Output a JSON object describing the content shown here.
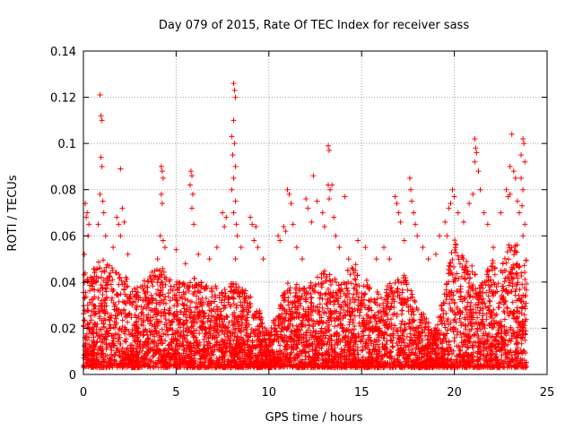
{
  "chart_data": {
    "type": "scatter",
    "title": "Day 079 of 2015, Rate Of TEC Index for receiver sass",
    "xlabel": "GPS time / hours",
    "ylabel": "ROTI / TECUs",
    "xlim": [
      0,
      25
    ],
    "ylim": [
      0,
      0.14
    ],
    "x_ticks": [
      "0",
      "5",
      "10",
      "15",
      "20",
      "25"
    ],
    "y_ticks": [
      "0",
      "0.02",
      "0.04",
      "0.06",
      "0.08",
      "0.1",
      "0.12",
      "0.14"
    ],
    "x_tick_values": [
      0,
      5,
      10,
      15,
      20,
      25
    ],
    "y_tick_values": [
      0,
      0.02,
      0.04,
      0.06,
      0.07999999999999999,
      0.1,
      0.12,
      0.14
    ],
    "grid": true,
    "marker": "+",
    "color": "#ff0000",
    "series": [
      {
        "name": "ROTI",
        "points": [
          [
            0.1,
            0.074
          ],
          [
            0.15,
            0.068
          ],
          [
            0.2,
            0.07
          ],
          [
            0.3,
            0.065
          ],
          [
            0.25,
            0.06
          ],
          [
            0.05,
            0.052
          ],
          [
            0.9,
            0.121
          ],
          [
            0.95,
            0.112
          ],
          [
            1.0,
            0.11
          ],
          [
            0.95,
            0.094
          ],
          [
            1.0,
            0.09
          ],
          [
            0.9,
            0.078
          ],
          [
            1.05,
            0.075
          ],
          [
            1.1,
            0.07
          ],
          [
            0.8,
            0.065
          ],
          [
            1.2,
            0.06
          ],
          [
            1.6,
            0.055
          ],
          [
            1.8,
            0.068
          ],
          [
            1.9,
            0.065
          ],
          [
            2.0,
            0.089
          ],
          [
            2.1,
            0.072
          ],
          [
            2.2,
            0.066
          ],
          [
            2.0,
            0.06
          ],
          [
            2.4,
            0.052
          ],
          [
            4.2,
            0.09
          ],
          [
            4.25,
            0.088
          ],
          [
            4.3,
            0.085
          ],
          [
            4.2,
            0.078
          ],
          [
            4.25,
            0.074
          ],
          [
            4.15,
            0.06
          ],
          [
            4.3,
            0.058
          ],
          [
            4.4,
            0.055
          ],
          [
            4.0,
            0.05
          ],
          [
            5.0,
            0.054
          ],
          [
            5.5,
            0.048
          ],
          [
            5.8,
            0.088
          ],
          [
            5.85,
            0.086
          ],
          [
            5.75,
            0.082
          ],
          [
            5.9,
            0.078
          ],
          [
            5.85,
            0.072
          ],
          [
            5.95,
            0.065
          ],
          [
            6.2,
            0.052
          ],
          [
            6.8,
            0.05
          ],
          [
            7.2,
            0.055
          ],
          [
            7.5,
            0.07
          ],
          [
            7.7,
            0.068
          ],
          [
            7.6,
            0.064
          ],
          [
            8.1,
            0.126
          ],
          [
            8.15,
            0.123
          ],
          [
            8.2,
            0.12
          ],
          [
            8.1,
            0.11
          ],
          [
            8.0,
            0.103
          ],
          [
            8.15,
            0.1
          ],
          [
            8.05,
            0.095
          ],
          [
            8.2,
            0.09
          ],
          [
            8.1,
            0.085
          ],
          [
            8.0,
            0.08
          ],
          [
            8.2,
            0.075
          ],
          [
            8.1,
            0.07
          ],
          [
            8.25,
            0.065
          ],
          [
            8.3,
            0.06
          ],
          [
            8.5,
            0.055
          ],
          [
            8.2,
            0.05
          ],
          [
            9.0,
            0.068
          ],
          [
            9.1,
            0.065
          ],
          [
            9.3,
            0.064
          ],
          [
            9.2,
            0.058
          ],
          [
            9.4,
            0.055
          ],
          [
            9.7,
            0.05
          ],
          [
            10.5,
            0.06
          ],
          [
            10.6,
            0.058
          ],
          [
            10.8,
            0.064
          ],
          [
            10.9,
            0.062
          ],
          [
            11.0,
            0.08
          ],
          [
            11.1,
            0.078
          ],
          [
            11.2,
            0.074
          ],
          [
            11.3,
            0.065
          ],
          [
            11.5,
            0.055
          ],
          [
            11.8,
            0.05
          ],
          [
            12.0,
            0.076
          ],
          [
            12.1,
            0.072
          ],
          [
            12.3,
            0.066
          ],
          [
            12.4,
            0.086
          ],
          [
            12.6,
            0.075
          ],
          [
            12.9,
            0.07
          ],
          [
            13.0,
            0.064
          ],
          [
            13.2,
            0.099
          ],
          [
            13.25,
            0.097
          ],
          [
            13.2,
            0.082
          ],
          [
            13.3,
            0.08
          ],
          [
            13.25,
            0.076
          ],
          [
            13.4,
            0.082
          ],
          [
            13.5,
            0.068
          ],
          [
            13.6,
            0.06
          ],
          [
            13.8,
            0.055
          ],
          [
            14.1,
            0.077
          ],
          [
            14.3,
            0.05
          ],
          [
            14.8,
            0.058
          ],
          [
            15.2,
            0.055
          ],
          [
            15.8,
            0.05
          ],
          [
            16.2,
            0.055
          ],
          [
            16.5,
            0.05
          ],
          [
            16.8,
            0.077
          ],
          [
            16.9,
            0.074
          ],
          [
            17.0,
            0.07
          ],
          [
            17.1,
            0.066
          ],
          [
            17.3,
            0.058
          ],
          [
            17.6,
            0.085
          ],
          [
            17.65,
            0.08
          ],
          [
            17.7,
            0.075
          ],
          [
            17.8,
            0.07
          ],
          [
            17.9,
            0.065
          ],
          [
            18.0,
            0.06
          ],
          [
            18.3,
            0.055
          ],
          [
            18.6,
            0.05
          ],
          [
            19.0,
            0.052
          ],
          [
            19.2,
            0.06
          ],
          [
            19.5,
            0.066
          ],
          [
            19.6,
            0.06
          ],
          [
            19.7,
            0.072
          ],
          [
            19.8,
            0.074
          ],
          [
            19.9,
            0.08
          ],
          [
            20.0,
            0.077
          ],
          [
            20.2,
            0.07
          ],
          [
            20.5,
            0.066
          ],
          [
            20.8,
            0.074
          ],
          [
            21.0,
            0.078
          ],
          [
            21.1,
            0.102
          ],
          [
            21.15,
            0.098
          ],
          [
            21.2,
            0.096
          ],
          [
            21.1,
            0.092
          ],
          [
            21.3,
            0.088
          ],
          [
            21.4,
            0.08
          ],
          [
            21.6,
            0.07
          ],
          [
            21.8,
            0.065
          ],
          [
            22.1,
            0.055
          ],
          [
            22.5,
            0.07
          ],
          [
            22.8,
            0.08
          ],
          [
            22.9,
            0.077
          ],
          [
            23.1,
            0.104
          ],
          [
            23.0,
            0.09
          ],
          [
            23.2,
            0.088
          ],
          [
            23.3,
            0.085
          ],
          [
            23.0,
            0.078
          ],
          [
            23.4,
            0.075
          ],
          [
            23.5,
            0.07
          ],
          [
            23.6,
            0.095
          ],
          [
            23.7,
            0.102
          ],
          [
            23.75,
            0.1
          ],
          [
            23.8,
            0.092
          ],
          [
            23.6,
            0.085
          ],
          [
            23.7,
            0.08
          ],
          [
            23.65,
            0.073
          ],
          [
            23.8,
            0.065
          ],
          [
            23.7,
            0.06
          ]
        ],
        "dense_band": {
          "note": "dense cloud of ROTI samples between 0 and 0.05 for the whole day",
          "x_range": [
            0,
            23.9
          ],
          "envelope_x": [
            0,
            0.3,
            1.0,
            2.0,
            3.0,
            4.0,
            5.0,
            6.0,
            7.0,
            8.0,
            8.6,
            9.2,
            9.6,
            10.0,
            10.5,
            11.0,
            12.0,
            13.0,
            13.5,
            14.0,
            14.5,
            15.0,
            16.0,
            17.0,
            17.5,
            18.0,
            18.5,
            19.0,
            19.5,
            20.0,
            20.5,
            21.0,
            21.5,
            22.0,
            22.5,
            23.0,
            23.5,
            23.9
          ],
          "envelope_y": [
            0.045,
            0.045,
            0.05,
            0.045,
            0.038,
            0.048,
            0.04,
            0.042,
            0.038,
            0.04,
            0.038,
            0.032,
            0.026,
            0.018,
            0.03,
            0.04,
            0.038,
            0.045,
            0.042,
            0.04,
            0.05,
            0.045,
            0.035,
            0.045,
            0.042,
            0.03,
            0.025,
            0.02,
            0.038,
            0.06,
            0.05,
            0.048,
            0.04,
            0.05,
            0.045,
            0.06,
            0.055,
            0.05
          ],
          "floor": 0.003,
          "count": 5200
        }
      }
    ]
  }
}
